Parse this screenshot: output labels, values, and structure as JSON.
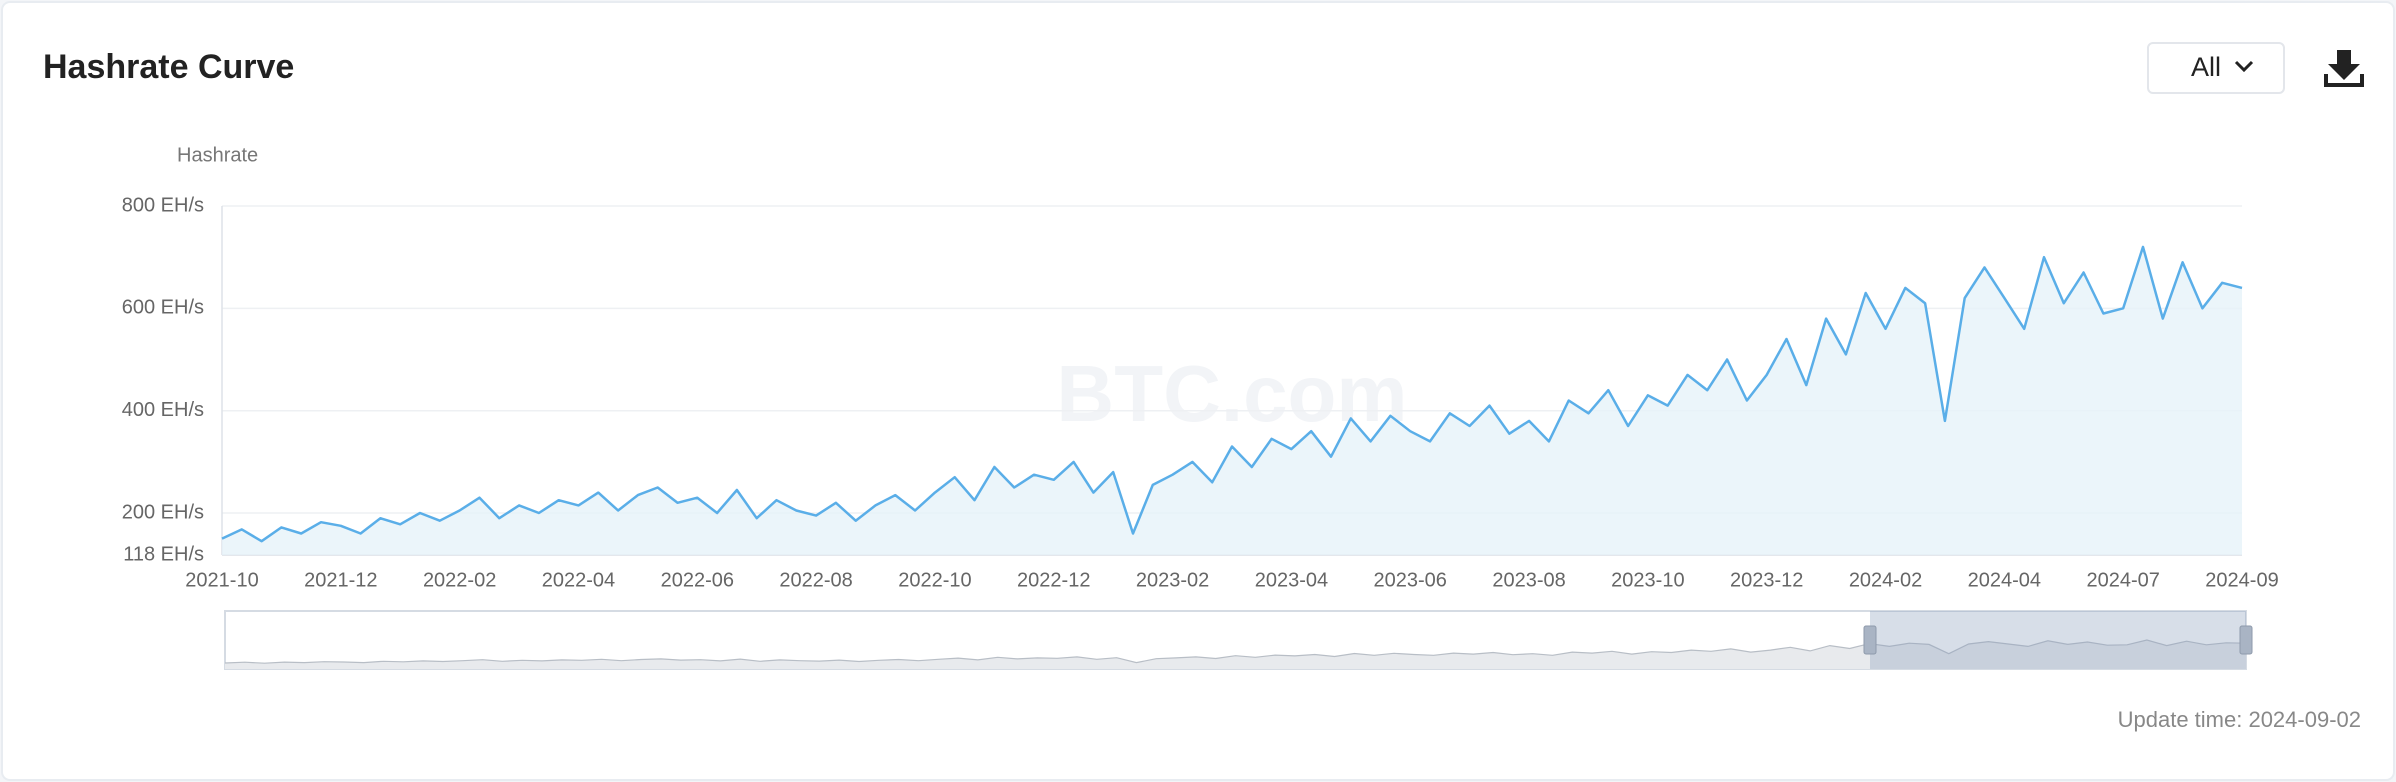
{
  "chart_data": {
    "type": "line",
    "title": "Hashrate Curve",
    "range_selector": "All",
    "y_label": "Hashrate",
    "watermark": "BTC.com",
    "update_time": "Update time: 2024-09-02",
    "color": "#5aaee8",
    "grid": true,
    "categories": [
      "2021-10",
      null,
      null,
      null,
      null,
      null,
      "2021-12",
      null,
      null,
      null,
      null,
      null,
      "2022-02",
      null,
      null,
      null,
      null,
      null,
      "2022-04",
      null,
      null,
      null,
      null,
      null,
      "2022-06",
      null,
      null,
      null,
      null,
      null,
      "2022-08",
      null,
      null,
      null,
      null,
      null,
      "2022-10",
      null,
      null,
      null,
      null,
      null,
      "2022-12",
      null,
      null,
      null,
      null,
      null,
      "2023-02",
      null,
      null,
      null,
      null,
      null,
      "2023-04",
      null,
      null,
      null,
      null,
      null,
      "2023-06",
      null,
      null,
      null,
      null,
      null,
      "2023-08",
      null,
      null,
      null,
      null,
      null,
      "2023-10",
      null,
      null,
      null,
      null,
      null,
      "2023-12",
      null,
      null,
      null,
      null,
      null,
      "2024-02",
      null,
      null,
      null,
      null,
      null,
      "2024-04",
      null,
      null,
      null,
      null,
      null,
      "2024-07",
      null,
      null,
      null,
      null,
      null,
      "2024-09"
    ],
    "values": [
      150,
      168,
      145,
      172,
      160,
      182,
      175,
      160,
      190,
      178,
      200,
      185,
      205,
      230,
      190,
      215,
      200,
      225,
      215,
      240,
      205,
      235,
      250,
      220,
      230,
      200,
      245,
      190,
      225,
      205,
      195,
      220,
      185,
      215,
      235,
      205,
      240,
      270,
      225,
      290,
      250,
      275,
      265,
      300,
      240,
      280,
      160,
      255,
      275,
      300,
      260,
      330,
      290,
      345,
      325,
      360,
      310,
      385,
      340,
      390,
      360,
      340,
      395,
      370,
      410,
      355,
      380,
      340,
      420,
      395,
      440,
      370,
      430,
      410,
      470,
      440,
      500,
      420,
      470,
      540,
      450,
      580,
      510,
      630,
      560,
      640,
      610,
      380,
      620,
      680,
      620,
      560,
      700,
      610,
      670,
      590,
      600,
      720,
      580,
      690,
      600,
      650,
      640
    ],
    "ylim": [
      118,
      800
    ],
    "yticks": [
      {
        "value": 118,
        "label": "118 EH/s"
      },
      {
        "value": 200,
        "label": "200 EH/s"
      },
      {
        "value": 400,
        "label": "400 EH/s"
      },
      {
        "value": 600,
        "label": "600 EH/s"
      },
      {
        "value": 800,
        "label": "800 EH/s"
      }
    ]
  }
}
